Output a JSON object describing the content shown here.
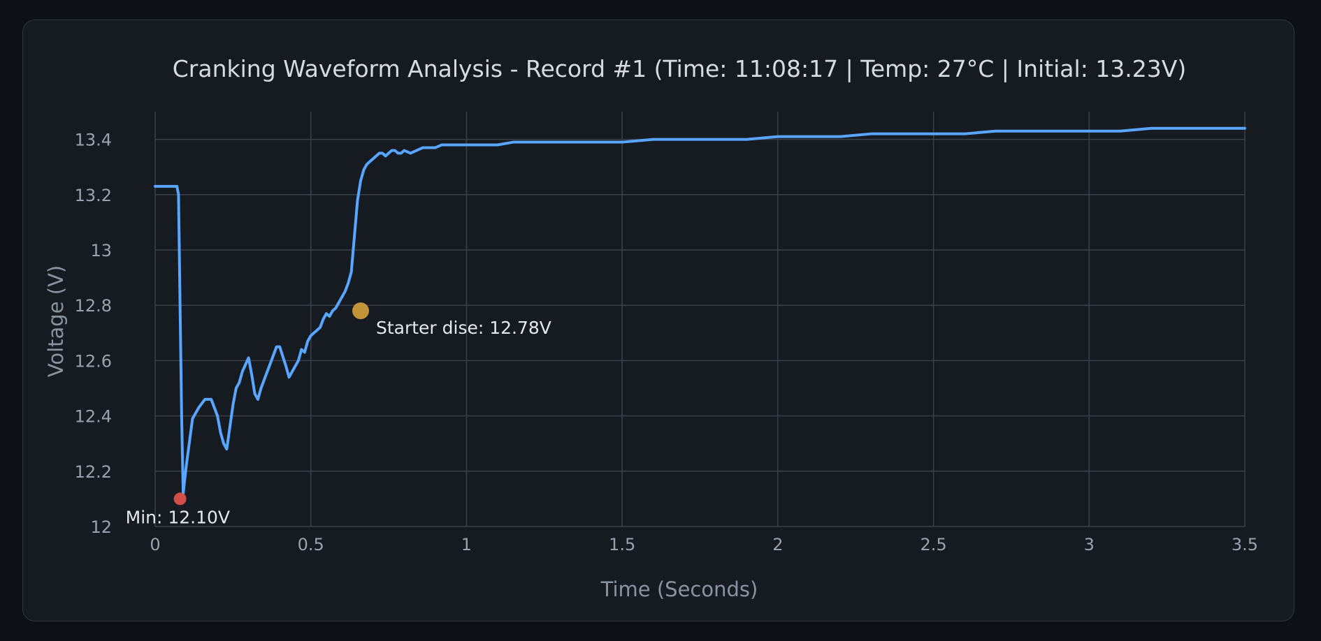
{
  "chart_data": {
    "type": "line",
    "title": "Cranking Waveform Analysis - Record #1 (Time: 11:08:17 | Temp: 27°C | Initial: 13.23V)",
    "xlabel": "Time (Seconds)",
    "ylabel": "Voltage (V)",
    "xlim": [
      0,
      3.5
    ],
    "ylim": [
      12,
      13.5
    ],
    "x_ticks": [
      0,
      0.5,
      1,
      1.5,
      2,
      2.5,
      3,
      3.5
    ],
    "x_tick_labels": [
      "0",
      "0.5",
      "1",
      "1.5",
      "2",
      "2.5",
      "3",
      "3.5"
    ],
    "y_ticks": [
      12,
      12.2,
      12.4,
      12.6,
      12.8,
      13,
      13.2,
      13.4
    ],
    "y_tick_labels": [
      "12",
      "12.2",
      "12.4",
      "12.6",
      "12.8",
      "13",
      "13.2",
      "13.4"
    ],
    "grid": true,
    "line_color": "#58a6ff",
    "series": [
      {
        "x": [
          0,
          0.04,
          0.07,
          0.075,
          0.08,
          0.085,
          0.09,
          0.1,
          0.12,
          0.14,
          0.16,
          0.18,
          0.2,
          0.21,
          0.22,
          0.23,
          0.24,
          0.25,
          0.26,
          0.27,
          0.28,
          0.3,
          0.31,
          0.32,
          0.33,
          0.34,
          0.35,
          0.36,
          0.37,
          0.38,
          0.39,
          0.4,
          0.42,
          0.43,
          0.44,
          0.45,
          0.46,
          0.47,
          0.48,
          0.49,
          0.5,
          0.51,
          0.52,
          0.53,
          0.54,
          0.55,
          0.56,
          0.57,
          0.58,
          0.59,
          0.6,
          0.61,
          0.62,
          0.63,
          0.64,
          0.65,
          0.66,
          0.67,
          0.68,
          0.69,
          0.7,
          0.71,
          0.72,
          0.73,
          0.74,
          0.75,
          0.76,
          0.77,
          0.78,
          0.79,
          0.8,
          0.82,
          0.84,
          0.86,
          0.88,
          0.9,
          0.92,
          0.94,
          0.96,
          0.98,
          1.0,
          1.05,
          1.1,
          1.15,
          1.2,
          1.25,
          1.3,
          1.35,
          1.4,
          1.5,
          1.6,
          1.7,
          1.8,
          1.9,
          2.0,
          2.1,
          2.2,
          2.3,
          2.4,
          2.5,
          2.6,
          2.7,
          2.8,
          2.9,
          3.0,
          3.1,
          3.2,
          3.3,
          3.4,
          3.5
        ],
        "y": [
          13.23,
          13.23,
          13.23,
          13.2,
          12.8,
          12.4,
          12.12,
          12.22,
          12.39,
          12.43,
          12.46,
          12.46,
          12.4,
          12.34,
          12.3,
          12.28,
          12.36,
          12.44,
          12.5,
          12.52,
          12.56,
          12.61,
          12.55,
          12.48,
          12.46,
          12.5,
          12.53,
          12.56,
          12.59,
          12.62,
          12.65,
          12.65,
          12.58,
          12.54,
          12.56,
          12.58,
          12.6,
          12.64,
          12.63,
          12.67,
          12.69,
          12.7,
          12.71,
          12.72,
          12.75,
          12.77,
          12.76,
          12.78,
          12.79,
          12.81,
          12.83,
          12.85,
          12.88,
          12.92,
          13.05,
          13.18,
          13.25,
          13.29,
          13.31,
          13.32,
          13.33,
          13.34,
          13.35,
          13.35,
          13.34,
          13.35,
          13.36,
          13.36,
          13.35,
          13.35,
          13.36,
          13.35,
          13.36,
          13.37,
          13.37,
          13.37,
          13.38,
          13.38,
          13.38,
          13.38,
          13.38,
          13.38,
          13.38,
          13.39,
          13.39,
          13.39,
          13.39,
          13.39,
          13.39,
          13.39,
          13.4,
          13.4,
          13.4,
          13.4,
          13.41,
          13.41,
          13.41,
          13.42,
          13.42,
          13.42,
          13.42,
          13.43,
          13.43,
          13.43,
          13.43,
          13.43,
          13.44,
          13.44,
          13.44,
          13.44
        ]
      }
    ],
    "annotations": [
      {
        "text": "Min: 12.10V",
        "x": 0.08,
        "y": 12.1,
        "marker_color": "#e5534b"
      },
      {
        "text": "Starter dise: 12.78V",
        "x": 0.66,
        "y": 12.78,
        "marker_color": "#d4a23a"
      }
    ]
  }
}
